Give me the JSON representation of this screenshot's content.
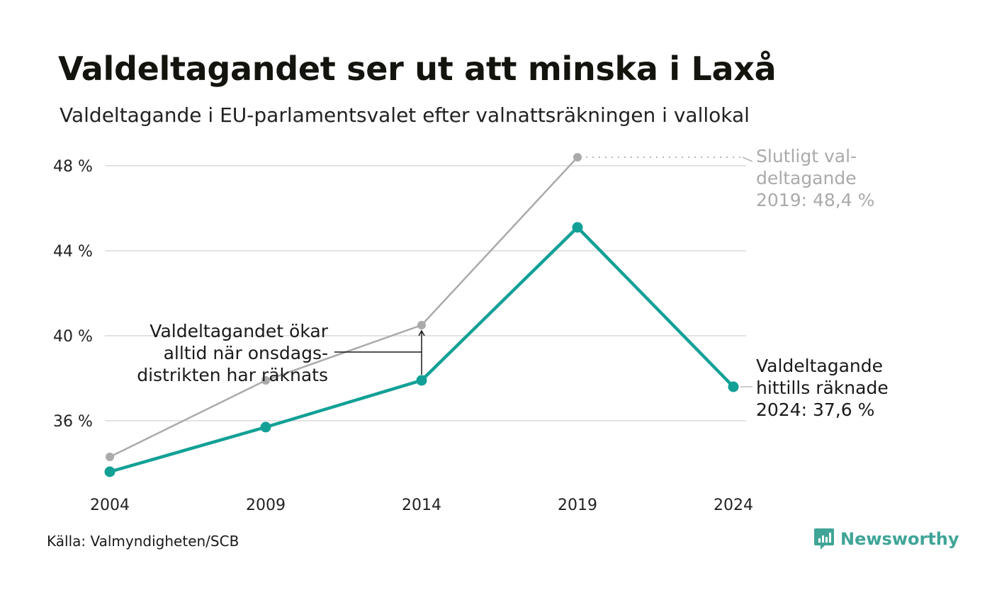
{
  "chart_data": {
    "type": "line",
    "title": "Valdeltagandet ser ut att minska i Laxå",
    "subtitle": "Valdeltagande i EU-parlamentsvalet efter valnattsräkningen i vallokal",
    "x": [
      "2004",
      "2009",
      "2014",
      "2019",
      "2024"
    ],
    "y_ticks": [
      36,
      40,
      44,
      48
    ],
    "y_tick_labels": [
      "36 %",
      "40 %",
      "44 %",
      "48 %"
    ],
    "ylim": [
      33.5,
      49.5
    ],
    "grid": true,
    "series": [
      {
        "key": "final",
        "values": [
          34.3,
          37.9,
          40.5,
          48.4,
          null
        ],
        "color": "#aaaaaa"
      },
      {
        "key": "preliminary",
        "values": [
          33.6,
          35.7,
          37.9,
          45.1,
          37.6
        ],
        "color": "#12a096"
      }
    ],
    "annotations": {
      "final_label": [
        "Slutligt val-",
        "deltagande",
        "2019: 48,4 %"
      ],
      "preliminary_label": [
        "Valdeltagande",
        "hittills räknade",
        "2024: 37,6 %"
      ],
      "note": [
        "Valdeltagandet ökar",
        "alltid när onsdags-",
        "distrikten har räknats"
      ]
    }
  },
  "footer": {
    "source": "Källa: Valmyndigheten/SCB",
    "brand": "Newsworthy"
  },
  "colors": {
    "accent": "#12a096",
    "grey_series": "#aaaaaa",
    "grid": "#e3e3e3",
    "brand": "#3fa597"
  },
  "icons": {
    "logo": "newsworthy-chart-bubble-icon"
  }
}
